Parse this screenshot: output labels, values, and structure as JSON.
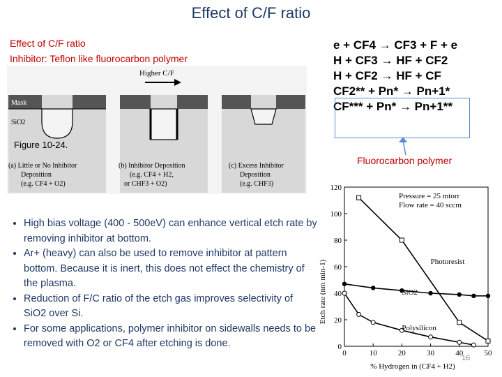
{
  "slide": {
    "title": "Effect of C/F ratio",
    "subtitle_line1": "Effect of C/F ratio",
    "subtitle_line2": "Inhibitor: Teflon like fluorocarbon polymer",
    "page_number": "16"
  },
  "figure": {
    "higher_label": "Higher C/F",
    "mask_label": "Mask",
    "sio2_label": "SiO2",
    "figure_label": "Figure 10-24.",
    "captions": [
      [
        "(a) Little or No Inhibitor",
        "Deposition",
        "(e.g. CF4 + O2)"
      ],
      [
        "(b) Inhibitor Deposition",
        "(e.g. CF4 + H2,",
        "or CHF3 + O2)"
      ],
      [
        "(c) Excess Inhibitor",
        "Deposition",
        "(e.g. CHF3)"
      ]
    ]
  },
  "equations": [
    "e + CF4 → CF3 + F + e",
    "H + CF3 → HF + CF2",
    "H + CF2 → HF + CF",
    "CF2** + Pn* → Pn+1*",
    "CF*** + Pn* → Pn+1**"
  ],
  "polymer_label": "Fluorocarbon polymer",
  "bullets": [
    "High bias voltage (400 - 500eV) can enhance vertical etch rate by removing inhibitor at bottom.",
    "Ar+ (heavy) can also be used to remove inhibitor at pattern bottom. Because it is inert, this does not effect the chemistry of the plasma.",
    "Reduction of F/C ratio of the etch gas improves selectivity of SiO2 over Si.",
    "For some applications, polymer inhibitor on sidewalls needs to be removed with O2 or CF4 after etching is done."
  ],
  "chart_data": {
    "type": "line",
    "xlabel": "% Hydrogen in (CF4 + H2)",
    "ylabel": "Etch rate (nm min-1)",
    "xlim": [
      0,
      50
    ],
    "ylim": [
      0,
      120
    ],
    "xticks": [
      0,
      10,
      20,
      30,
      40,
      50
    ],
    "yticks": [
      0,
      20,
      40,
      60,
      80,
      100,
      120
    ],
    "annotations": [
      "Pressure = 25 mtorr",
      "Flow rate = 40 sccm"
    ],
    "series": [
      {
        "name": "Photoresist",
        "marker": "square",
        "x": [
          5,
          20,
          40,
          50
        ],
        "y": [
          112,
          80,
          18,
          4
        ]
      },
      {
        "name": "SiO2",
        "marker": "filled-circle",
        "x": [
          0,
          10,
          20,
          30,
          40,
          45,
          50
        ],
        "y": [
          47,
          44,
          42,
          40,
          39,
          38,
          38
        ]
      },
      {
        "name": "Polysilicon",
        "marker": "open-circle",
        "x": [
          0,
          5,
          10,
          20,
          30,
          40,
          45
        ],
        "y": [
          40,
          24,
          18,
          12,
          7,
          3,
          1
        ]
      }
    ]
  }
}
